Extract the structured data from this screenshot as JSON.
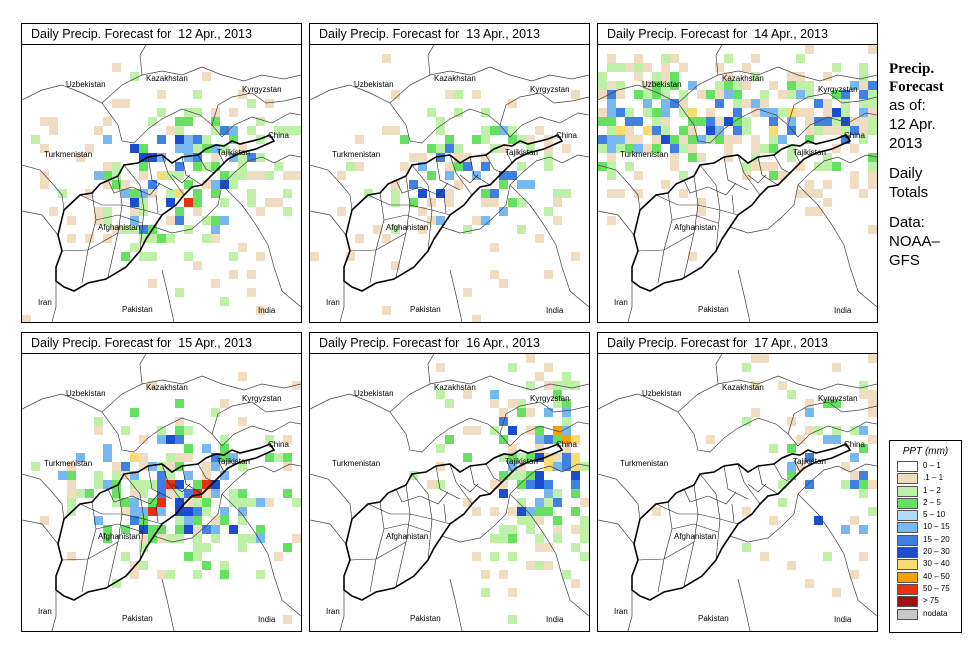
{
  "panels": [
    {
      "title": "Daily Precip. Forecast for  12 Apr., 2013",
      "seed": 11,
      "density": 0.52,
      "intensity": 0.55,
      "focus": "afghan"
    },
    {
      "title": "Daily Precip. Forecast for  13 Apr., 2013",
      "seed": 23,
      "density": 0.32,
      "intensity": 0.35,
      "focus": "afghan"
    },
    {
      "title": "Daily Precip. Forecast for  14 Apr., 2013",
      "seed": 37,
      "density": 0.55,
      "intensity": 0.25,
      "focus": "north"
    },
    {
      "title": "Daily Precip. Forecast for  15 Apr., 2013",
      "seed": 41,
      "density": 0.62,
      "intensity": 0.7,
      "focus": "afghan"
    },
    {
      "title": "Daily Precip. Forecast for  16 Apr., 2013",
      "seed": 53,
      "density": 0.55,
      "intensity": 0.6,
      "focus": "northeast"
    },
    {
      "title": "Daily Precip. Forecast for  17 Apr., 2013",
      "seed": 67,
      "density": 0.28,
      "intensity": 0.45,
      "focus": "northeast"
    }
  ],
  "countries": [
    "Uzbekistan",
    "Kazakhstan",
    "Kyrgyzstan",
    "China",
    "Turkmenistan",
    "Tajikistan",
    "Afghanistan",
    "Iran",
    "Pakistan",
    "India"
  ],
  "sidebar": {
    "heading_line1": "Precip.",
    "heading_line2": "Forecast",
    "asof": "as of:",
    "date_line1": "12 Apr.",
    "date_line2": "2013",
    "daily_line1": "Daily",
    "daily_line2": "Totals",
    "data_line1": "Data:",
    "data_line2": "NOAA–",
    "data_line3": "GFS"
  },
  "legend": {
    "title": "PPT (mm)",
    "items": [
      {
        "label": "0 – 1",
        "color": "#ffffff"
      },
      {
        "label": ".1 – 1",
        "color": "#f0dcc0"
      },
      {
        "label": "1 – 2",
        "color": "#bff0a8"
      },
      {
        "label": "2 – 5",
        "color": "#66e060"
      },
      {
        "label": "5 – 10",
        "color": "#b4dcf8"
      },
      {
        "label": "10 – 15",
        "color": "#78b8f0"
      },
      {
        "label": "15 – 20",
        "color": "#4080e0"
      },
      {
        "label": "20 – 30",
        "color": "#1a4ed0"
      },
      {
        "label": "30 – 40",
        "color": "#f8dc70"
      },
      {
        "label": "40 – 50",
        "color": "#f8a000"
      },
      {
        "label": "50 – 75",
        "color": "#e83010"
      },
      {
        "label": "> 75",
        "color": "#a01010"
      },
      {
        "label": "nodata",
        "color": "#c8c8c8"
      }
    ]
  }
}
